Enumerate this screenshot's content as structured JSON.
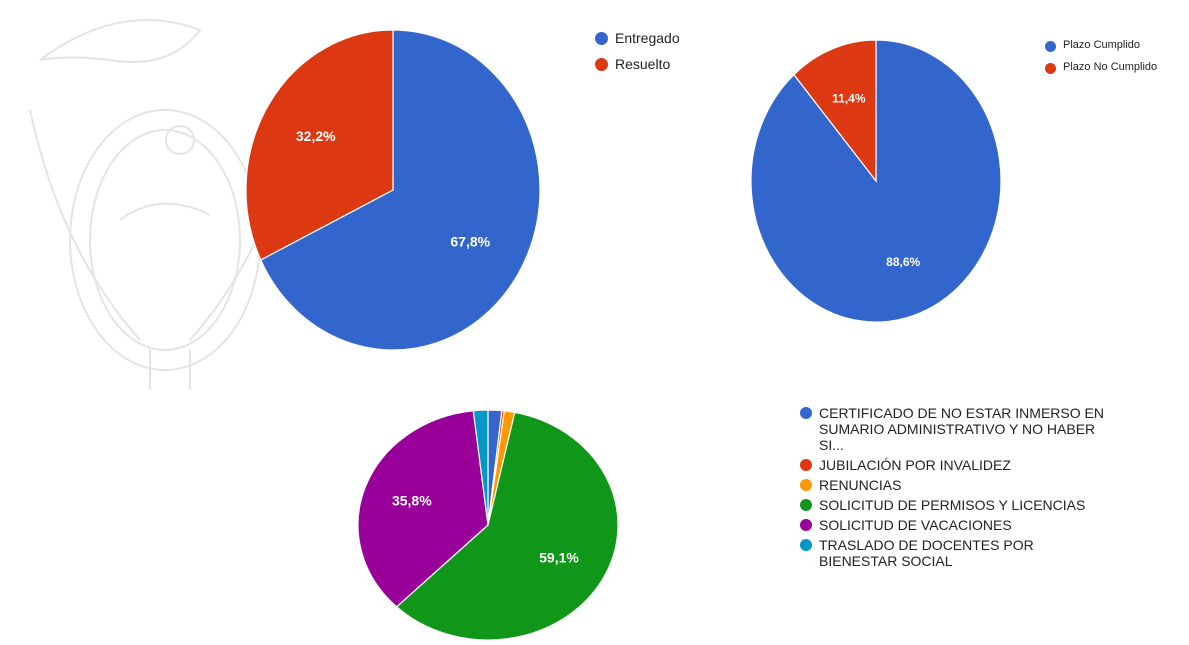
{
  "chart_data": [
    {
      "type": "pie",
      "categories": [
        "Entregado",
        "Resuelto"
      ],
      "values": [
        67.8,
        32.2
      ],
      "value_labels": [
        "67,8%",
        "32,2%"
      ],
      "colors": [
        "#3366cc",
        "#dc3912"
      ]
    },
    {
      "type": "pie",
      "categories": [
        "Plazo Cumplido",
        "Plazo No Cumplido"
      ],
      "values": [
        88.6,
        11.4
      ],
      "value_labels": [
        "88,6%",
        "11,4%"
      ],
      "colors": [
        "#3366cc",
        "#dc3912"
      ]
    },
    {
      "type": "pie",
      "categories": [
        "CERTIFICADO DE NO ESTAR INMERSO EN SUMARIO ADMINISTRATIVO Y NO HABER SI...",
        "JUBILACIÓN POR INVALIDEZ",
        "RENUNCIAS",
        "SOLICITUD DE PERMISOS Y LICENCIAS",
        "SOLICITUD DE VACACIONES",
        "TRASLADO DE DOCENTES POR BIENESTAR SOCIAL"
      ],
      "values": [
        1.7,
        0.3,
        1.3,
        59.1,
        35.8,
        1.8
      ],
      "value_labels": [
        null,
        null,
        null,
        "59,1%",
        "35,8%",
        null
      ],
      "colors": [
        "#3366cc",
        "#dc3912",
        "#ff9900",
        "#109618",
        "#990099",
        "#0099c6"
      ]
    }
  ]
}
